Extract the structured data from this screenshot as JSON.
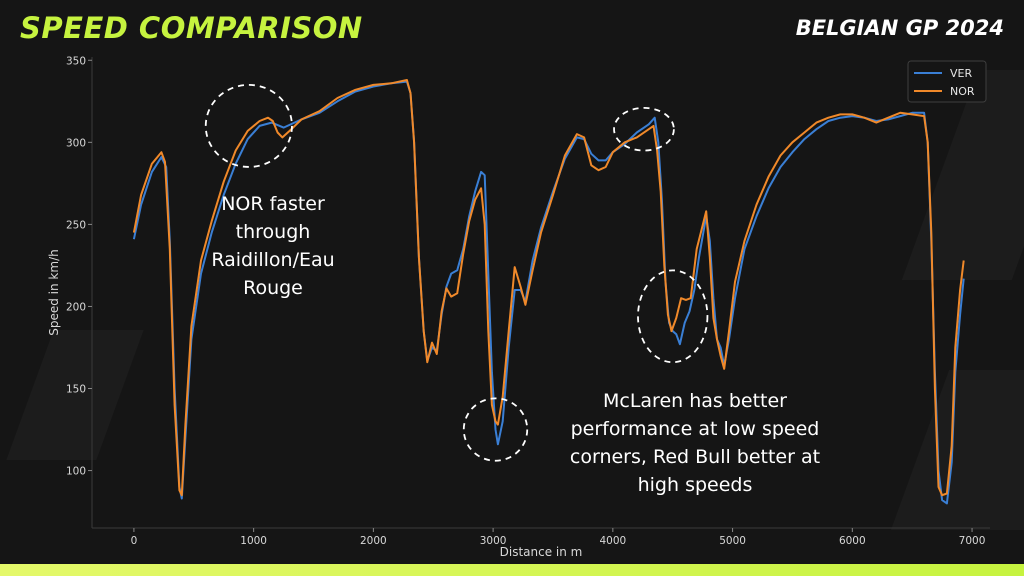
{
  "header": {
    "title": "SPEED COMPARISON",
    "event": "BELGIAN GP 2024"
  },
  "colors": {
    "accent": "#c6f33f",
    "ver": "#3a7fd5",
    "nor": "#f0892a",
    "background": "#151515"
  },
  "chart_data": {
    "type": "line",
    "title": "",
    "xlabel": "Distance in m",
    "ylabel": "Speed in km/h",
    "xlim": [
      -350,
      7150
    ],
    "ylim": [
      65,
      352
    ],
    "xticks": [
      0,
      1000,
      2000,
      3000,
      4000,
      5000,
      6000,
      7000
    ],
    "yticks": [
      100,
      150,
      200,
      250,
      300,
      350
    ],
    "grid": false,
    "legend": "top-right",
    "series": [
      {
        "name": "VER",
        "color": "#3a7fd5",
        "points": [
          [
            0,
            241
          ],
          [
            60,
            262
          ],
          [
            150,
            282
          ],
          [
            230,
            291
          ],
          [
            270,
            285
          ],
          [
            300,
            240
          ],
          [
            340,
            150
          ],
          [
            380,
            90
          ],
          [
            400,
            83
          ],
          [
            430,
            120
          ],
          [
            480,
            180
          ],
          [
            560,
            220
          ],
          [
            650,
            245
          ],
          [
            750,
            268
          ],
          [
            850,
            287
          ],
          [
            950,
            302
          ],
          [
            1050,
            310
          ],
          [
            1150,
            312
          ],
          [
            1250,
            309
          ],
          [
            1400,
            314
          ],
          [
            1550,
            318
          ],
          [
            1700,
            325
          ],
          [
            1850,
            331
          ],
          [
            2000,
            334
          ],
          [
            2150,
            336
          ],
          [
            2280,
            337
          ],
          [
            2310,
            330
          ],
          [
            2340,
            300
          ],
          [
            2380,
            230
          ],
          [
            2420,
            185
          ],
          [
            2450,
            167
          ],
          [
            2490,
            175
          ],
          [
            2530,
            173
          ],
          [
            2570,
            195
          ],
          [
            2610,
            212
          ],
          [
            2650,
            220
          ],
          [
            2700,
            222
          ],
          [
            2750,
            235
          ],
          [
            2800,
            255
          ],
          [
            2850,
            270
          ],
          [
            2900,
            282
          ],
          [
            2930,
            280
          ],
          [
            2960,
            220
          ],
          [
            2990,
            160
          ],
          [
            3020,
            125
          ],
          [
            3040,
            116
          ],
          [
            3080,
            130
          ],
          [
            3130,
            175
          ],
          [
            3180,
            210
          ],
          [
            3230,
            210
          ],
          [
            3270,
            203
          ],
          [
            3330,
            228
          ],
          [
            3400,
            248
          ],
          [
            3500,
            270
          ],
          [
            3600,
            290
          ],
          [
            3700,
            303
          ],
          [
            3760,
            302
          ],
          [
            3820,
            293
          ],
          [
            3880,
            289
          ],
          [
            3940,
            289
          ],
          [
            4000,
            294
          ],
          [
            4100,
            299
          ],
          [
            4200,
            306
          ],
          [
            4300,
            311
          ],
          [
            4350,
            315
          ],
          [
            4380,
            300
          ],
          [
            4410,
            265
          ],
          [
            4440,
            215
          ],
          [
            4470,
            190
          ],
          [
            4500,
            185
          ],
          [
            4530,
            183
          ],
          [
            4560,
            177
          ],
          [
            4600,
            190
          ],
          [
            4640,
            197
          ],
          [
            4680,
            210
          ],
          [
            4720,
            230
          ],
          [
            4780,
            255
          ],
          [
            4810,
            240
          ],
          [
            4840,
            205
          ],
          [
            4870,
            180
          ],
          [
            4900,
            175
          ],
          [
            4930,
            164
          ],
          [
            4970,
            180
          ],
          [
            5020,
            205
          ],
          [
            5100,
            235
          ],
          [
            5200,
            255
          ],
          [
            5300,
            272
          ],
          [
            5400,
            285
          ],
          [
            5500,
            294
          ],
          [
            5600,
            302
          ],
          [
            5700,
            308
          ],
          [
            5800,
            313
          ],
          [
            5900,
            315
          ],
          [
            6000,
            316
          ],
          [
            6100,
            315
          ],
          [
            6200,
            313
          ],
          [
            6300,
            314
          ],
          [
            6400,
            316
          ],
          [
            6500,
            318
          ],
          [
            6600,
            318
          ],
          [
            6630,
            300
          ],
          [
            6660,
            240
          ],
          [
            6690,
            160
          ],
          [
            6720,
            100
          ],
          [
            6750,
            82
          ],
          [
            6790,
            80
          ],
          [
            6830,
            105
          ],
          [
            6860,
            160
          ],
          [
            6900,
            195
          ],
          [
            6930,
            217
          ]
        ]
      },
      {
        "name": "NOR",
        "color": "#f0892a",
        "points": [
          [
            0,
            245
          ],
          [
            60,
            268
          ],
          [
            150,
            287
          ],
          [
            230,
            294
          ],
          [
            260,
            288
          ],
          [
            300,
            235
          ],
          [
            340,
            140
          ],
          [
            380,
            88
          ],
          [
            400,
            85
          ],
          [
            430,
            128
          ],
          [
            480,
            188
          ],
          [
            560,
            228
          ],
          [
            650,
            252
          ],
          [
            750,
            276
          ],
          [
            850,
            295
          ],
          [
            950,
            307
          ],
          [
            1050,
            313
          ],
          [
            1120,
            315
          ],
          [
            1160,
            313
          ],
          [
            1200,
            306
          ],
          [
            1240,
            303
          ],
          [
            1300,
            307
          ],
          [
            1400,
            314
          ],
          [
            1550,
            319
          ],
          [
            1700,
            327
          ],
          [
            1850,
            332
          ],
          [
            2000,
            335
          ],
          [
            2150,
            336
          ],
          [
            2280,
            338
          ],
          [
            2310,
            330
          ],
          [
            2340,
            300
          ],
          [
            2380,
            230
          ],
          [
            2420,
            185
          ],
          [
            2450,
            166
          ],
          [
            2490,
            178
          ],
          [
            2530,
            171
          ],
          [
            2570,
            197
          ],
          [
            2610,
            211
          ],
          [
            2650,
            206
          ],
          [
            2700,
            208
          ],
          [
            2750,
            232
          ],
          [
            2800,
            252
          ],
          [
            2850,
            265
          ],
          [
            2900,
            272
          ],
          [
            2930,
            250
          ],
          [
            2960,
            185
          ],
          [
            2990,
            140
          ],
          [
            3020,
            130
          ],
          [
            3040,
            128
          ],
          [
            3080,
            145
          ],
          [
            3130,
            185
          ],
          [
            3180,
            224
          ],
          [
            3230,
            212
          ],
          [
            3270,
            201
          ],
          [
            3330,
            222
          ],
          [
            3400,
            245
          ],
          [
            3500,
            268
          ],
          [
            3600,
            292
          ],
          [
            3700,
            305
          ],
          [
            3760,
            303
          ],
          [
            3820,
            286
          ],
          [
            3880,
            283
          ],
          [
            3940,
            285
          ],
          [
            4000,
            294
          ],
          [
            4100,
            300
          ],
          [
            4200,
            303
          ],
          [
            4300,
            308
          ],
          [
            4340,
            310
          ],
          [
            4370,
            295
          ],
          [
            4400,
            270
          ],
          [
            4430,
            225
          ],
          [
            4460,
            195
          ],
          [
            4490,
            185
          ],
          [
            4530,
            193
          ],
          [
            4570,
            205
          ],
          [
            4610,
            204
          ],
          [
            4650,
            205
          ],
          [
            4700,
            235
          ],
          [
            4780,
            258
          ],
          [
            4810,
            230
          ],
          [
            4840,
            193
          ],
          [
            4870,
            180
          ],
          [
            4900,
            170
          ],
          [
            4930,
            162
          ],
          [
            4970,
            185
          ],
          [
            5020,
            215
          ],
          [
            5100,
            240
          ],
          [
            5200,
            262
          ],
          [
            5300,
            279
          ],
          [
            5400,
            292
          ],
          [
            5500,
            300
          ],
          [
            5600,
            306
          ],
          [
            5700,
            312
          ],
          [
            5800,
            315
          ],
          [
            5900,
            317
          ],
          [
            6000,
            317
          ],
          [
            6100,
            315
          ],
          [
            6200,
            312
          ],
          [
            6300,
            315
          ],
          [
            6400,
            318
          ],
          [
            6500,
            317
          ],
          [
            6600,
            316
          ],
          [
            6630,
            300
          ],
          [
            6660,
            245
          ],
          [
            6690,
            150
          ],
          [
            6720,
            90
          ],
          [
            6750,
            85
          ],
          [
            6790,
            86
          ],
          [
            6830,
            115
          ],
          [
            6860,
            175
          ],
          [
            6900,
            210
          ],
          [
            6930,
            228
          ]
        ]
      }
    ],
    "annotations": [
      {
        "id": "raidillon",
        "lines": [
          "NOR faster",
          "through",
          "Raidillon/Eau",
          "Rouge"
        ],
        "circles": [
          {
            "x": 960,
            "y": 310,
            "rx": 360,
            "ry": 25
          }
        ]
      },
      {
        "id": "mclaren-low-speed",
        "lines": [
          "McLaren has better",
          "performance at low speed",
          "corners, Red Bull better at",
          "high speeds"
        ],
        "circles": [
          {
            "x": 3020,
            "y": 125,
            "rx": 265,
            "ry": 19
          },
          {
            "x": 4260,
            "y": 308,
            "rx": 250,
            "ry": 13
          },
          {
            "x": 4500,
            "y": 194,
            "rx": 290,
            "ry": 28
          }
        ]
      }
    ]
  }
}
